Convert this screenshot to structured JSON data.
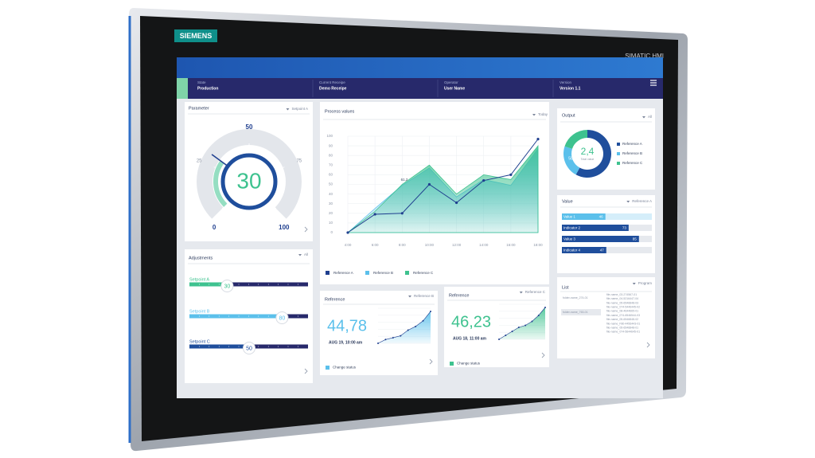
{
  "device": {
    "brand": "SIEMENS",
    "model": "SIMATIC HMI"
  },
  "header": {
    "items": [
      {
        "label": "State",
        "value": "Production"
      },
      {
        "label": "Current Receipe",
        "value": "Demo Receipe"
      },
      {
        "label": "Operator",
        "value": "User Name"
      },
      {
        "label": "Version",
        "value": "Version 1.1"
      }
    ]
  },
  "parameter": {
    "title": "Parameter",
    "filter": "Setpoint A",
    "gauge": {
      "value": 30,
      "range": [
        0,
        100
      ],
      "ticks": [
        0,
        25,
        50,
        75,
        100
      ],
      "color": "#3ec28f",
      "ring_color": "#1f4e9c"
    }
  },
  "adjustments": {
    "title": "Adjustments",
    "filter": "All",
    "range": [
      0,
      100
    ],
    "sliders": [
      {
        "name": "Setpoint A",
        "value": 30,
        "color": "#3ec28f"
      },
      {
        "name": "Setpoint B",
        "value": 80,
        "color": "#5bc0eb"
      },
      {
        "name": "Setpoint C",
        "value": 50,
        "color": "#1f4e9c"
      }
    ]
  },
  "chart_data": [
    {
      "type": "line",
      "title": "Process values",
      "filter": "Today",
      "categories": [
        "4:00",
        "6:00",
        "8:00",
        "10:00",
        "12:00",
        "14:00",
        "16:00",
        "18:00"
      ],
      "ylim": [
        0,
        100
      ],
      "yticks": [
        0,
        10,
        20,
        30,
        40,
        50,
        60,
        70,
        80,
        90,
        100
      ],
      "grid": true,
      "annotation": "61,2",
      "series": [
        {
          "name": "Reference A",
          "color": "#1f3f8f",
          "style": "line",
          "values": [
            0,
            19,
            20,
            50,
            31,
            54,
            60,
            97
          ]
        },
        {
          "name": "Reference B",
          "color": "#5bc0eb",
          "style": "area",
          "values": [
            0,
            25,
            49,
            67,
            37,
            55,
            49,
            87
          ]
        },
        {
          "name": "Reference C",
          "color": "#3ec28f",
          "style": "area",
          "values": [
            0,
            22,
            50,
            70,
            40,
            60,
            55,
            90
          ]
        }
      ]
    },
    {
      "type": "pie",
      "title": "Output",
      "filter": "All",
      "center_value": "2,4",
      "center_label": "Total value",
      "categories": [
        "Reference A",
        "Reference B",
        "Reference C"
      ],
      "values": [
        58,
        22,
        20
      ],
      "colors": [
        "#1f4e9c",
        "#5bc0eb",
        "#3ec28f"
      ]
    },
    {
      "type": "bar",
      "title": "Value",
      "filter": "Reference A",
      "categories": [
        "Value 1",
        "Indicator 2",
        "Value 3",
        "Indicator 4"
      ],
      "values": [
        46,
        73,
        85,
        47
      ],
      "xlim": [
        0,
        100
      ],
      "color": "#1f4e9c",
      "highlight_color": "#5bc0eb",
      "highlight": 0
    }
  ],
  "cards": [
    {
      "title": "Reference",
      "filter": "Reference B",
      "value": "44,78",
      "date": "AUG 19, 10:00 am",
      "action": "Change status",
      "color": "#5bc0eb",
      "sparkline": [
        10,
        20,
        25,
        30,
        45,
        55,
        70,
        95
      ]
    },
    {
      "title": "Reference",
      "filter": "Reference C",
      "value": "46,23",
      "date": "AUG 18, 11:00 am",
      "action": "Change status",
      "color": "#3ec28f",
      "sparkline": [
        15,
        25,
        35,
        45,
        50,
        60,
        75,
        95
      ]
    }
  ],
  "list": {
    "title": "List",
    "filter": "Program",
    "folders": [
      "folder-name_274-01",
      "folder-name_763-01"
    ],
    "files": [
      "file-name_03-274567-01",
      "file-name_04-5216447-04",
      "file-name_05-6546848-03",
      "file-name_074-5446445-02",
      "file-name_08-4644665-01",
      "file-name_074-6546544-03",
      "file-name_05-6546848-02",
      "file-name_F80-4456443-01",
      "file-name_05-6546848-01",
      "file-name_074-5644645-01"
    ]
  }
}
